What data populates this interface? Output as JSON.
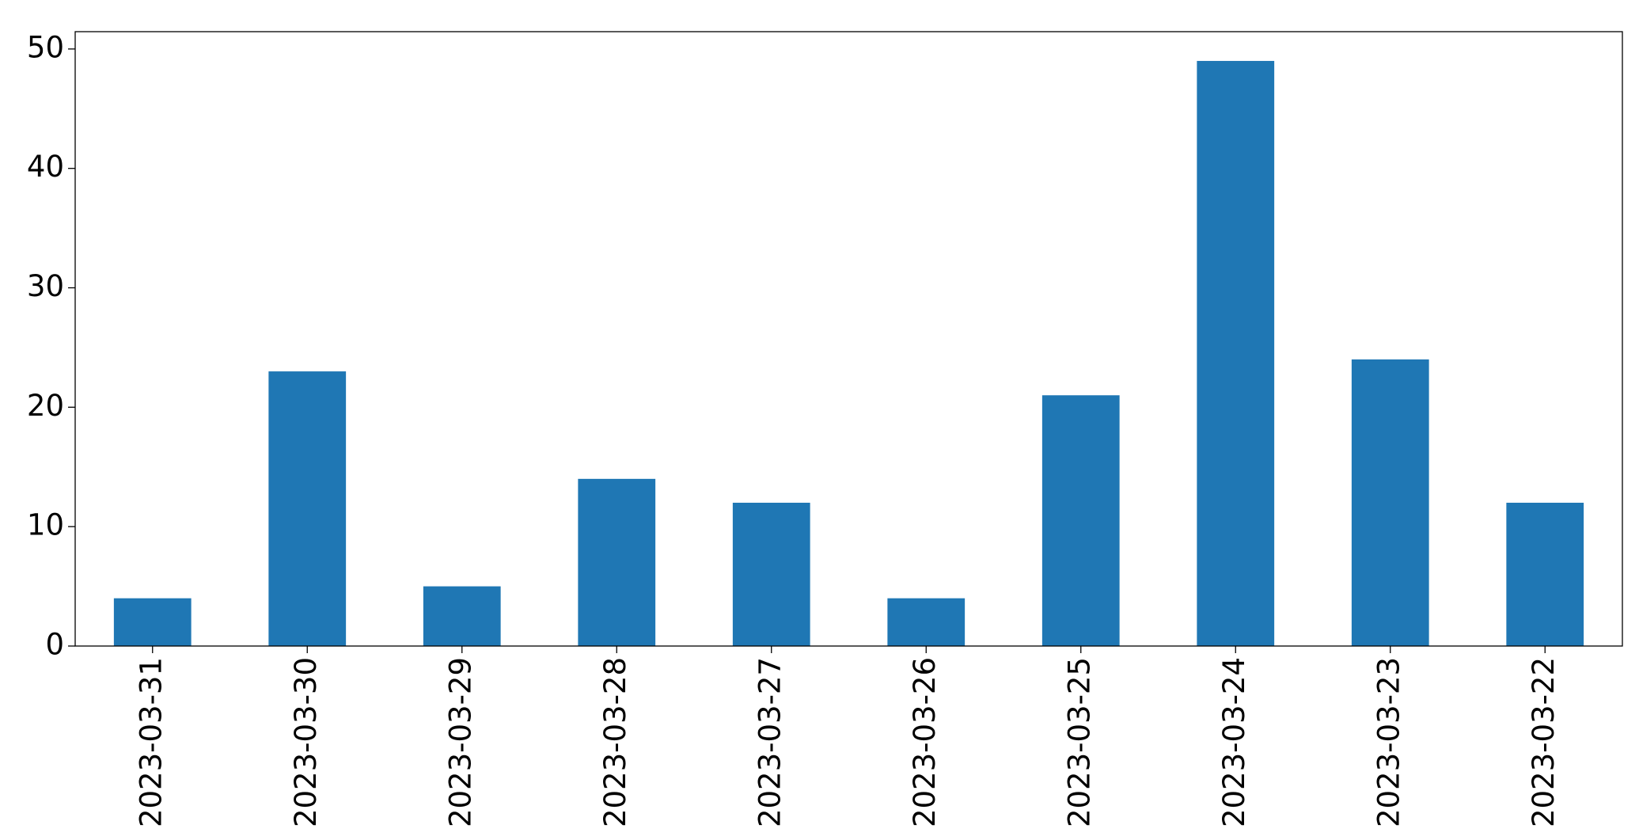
{
  "chart_data": {
    "type": "bar",
    "categories": [
      "2023-03-31",
      "2023-03-30",
      "2023-03-29",
      "2023-03-28",
      "2023-03-27",
      "2023-03-26",
      "2023-03-25",
      "2023-03-24",
      "2023-03-23",
      "2023-03-22"
    ],
    "values": [
      4,
      23,
      5,
      14,
      12,
      4,
      21,
      49,
      24,
      12
    ],
    "color": "#1f77b4",
    "ylim": [
      0,
      51.45
    ],
    "yticks": [
      0,
      10,
      20,
      30,
      40,
      50
    ],
    "grid": false
  }
}
